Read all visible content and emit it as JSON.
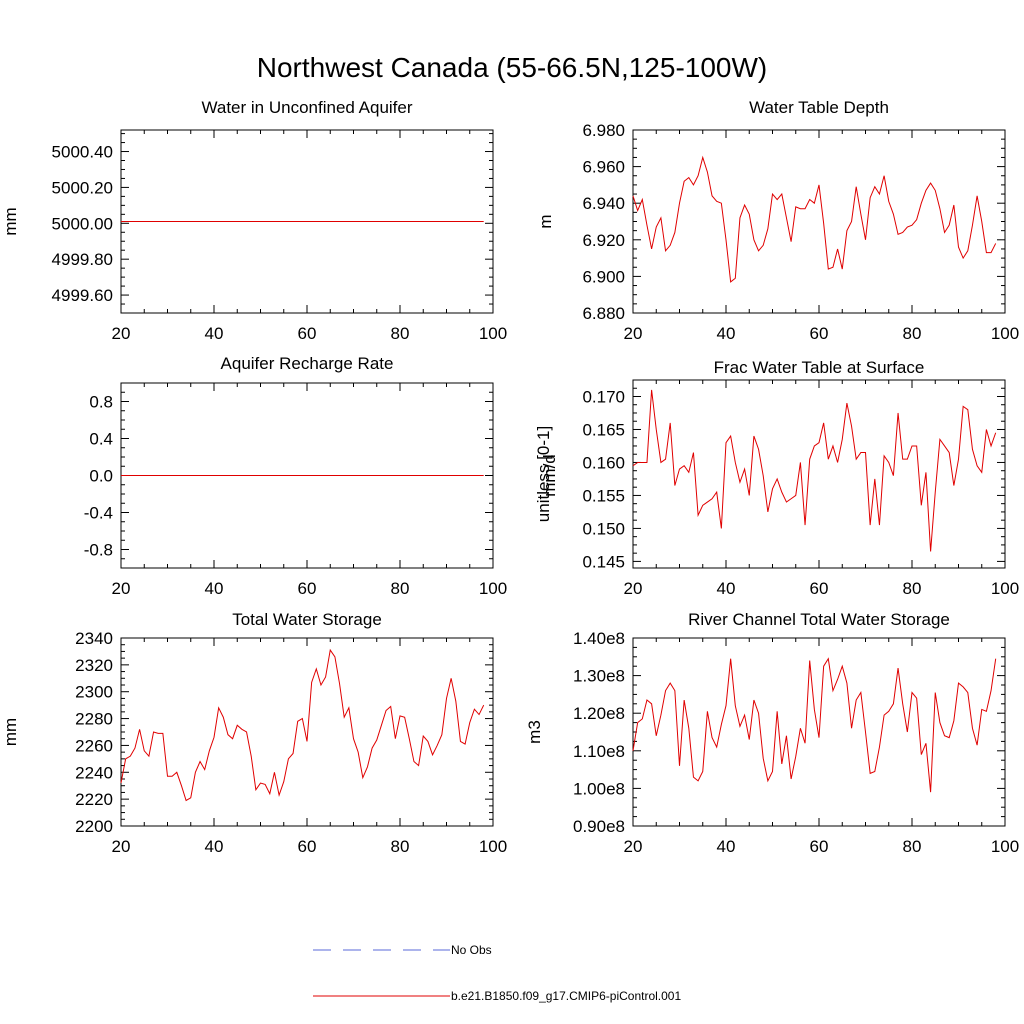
{
  "figure": {
    "title": "Northwest Canada (55-66.5N,125-100W)"
  },
  "legend": {
    "entries": [
      {
        "label": "No Obs",
        "style": "dashed",
        "color": "#5a6ad8"
      },
      {
        "label": "b.e21.B1850.f09_g17.CMIP6-piControl.001",
        "style": "solid",
        "color": "#e00000"
      }
    ]
  },
  "chart_data": [
    {
      "type": "line",
      "title": "Water in Unconfined Aquifer",
      "ylabel": "mm",
      "xlim": [
        20,
        100
      ],
      "ylim": [
        4999.5,
        5000.52
      ],
      "xticks": [
        20,
        40,
        60,
        80,
        100
      ],
      "xtick_labels": [
        "20",
        "40",
        "60",
        "80",
        "100"
      ],
      "yticks": [
        4999.6,
        4999.8,
        5000.0,
        5000.2,
        5000.4
      ],
      "ytick_labels": [
        "4999.60",
        "4999.80",
        "5000.00",
        "5000.20",
        "5000.40"
      ],
      "series": [
        {
          "name": "b.e21.B1850.f09_g17.CMIP6-piControl.001",
          "color": "#e00000",
          "x": [
            20,
            98
          ],
          "y": [
            5000.01,
            5000.01
          ]
        }
      ]
    },
    {
      "type": "line",
      "title": "Water Table Depth",
      "ylabel": "m",
      "xlim": [
        20,
        100
      ],
      "ylim": [
        6.88,
        6.98
      ],
      "xticks": [
        20,
        40,
        60,
        80,
        100
      ],
      "xtick_labels": [
        "20",
        "40",
        "60",
        "80",
        "100"
      ],
      "yticks": [
        6.88,
        6.9,
        6.92,
        6.94,
        6.96,
        6.98
      ],
      "ytick_labels": [
        "6.880",
        "6.900",
        "6.920",
        "6.940",
        "6.960",
        "6.980"
      ],
      "series": [
        {
          "name": "b.e21.B1850.f09_g17.CMIP6-piControl.001",
          "color": "#e00000",
          "x": [
            20,
            21,
            22,
            23,
            24,
            25,
            26,
            27,
            28,
            29,
            30,
            31,
            32,
            33,
            34,
            35,
            36,
            37,
            38,
            39,
            40,
            41,
            42,
            43,
            44,
            45,
            46,
            47,
            48,
            49,
            50,
            51,
            52,
            53,
            54,
            55,
            56,
            57,
            58,
            59,
            60,
            61,
            62,
            63,
            64,
            65,
            66,
            67,
            68,
            69,
            70,
            71,
            72,
            73,
            74,
            75,
            76,
            77,
            78,
            79,
            80,
            81,
            82,
            83,
            84,
            85,
            86,
            87,
            88,
            89,
            90,
            91,
            92,
            93,
            94,
            95,
            96,
            97,
            98
          ],
          "y": [
            6.944,
            6.936,
            6.942,
            6.928,
            6.915,
            6.927,
            6.932,
            6.914,
            6.917,
            6.924,
            6.94,
            6.952,
            6.954,
            6.95,
            6.955,
            6.965,
            6.957,
            6.944,
            6.941,
            6.94,
            6.92,
            6.897,
            6.899,
            6.932,
            6.939,
            6.934,
            6.92,
            6.914,
            6.917,
            6.926,
            6.945,
            6.942,
            6.945,
            6.932,
            6.919,
            6.938,
            6.937,
            6.937,
            6.942,
            6.94,
            6.95,
            6.929,
            6.904,
            6.905,
            6.915,
            6.904,
            6.925,
            6.93,
            6.949,
            6.934,
            6.92,
            6.943,
            6.949,
            6.945,
            6.955,
            6.941,
            6.934,
            6.923,
            6.924,
            6.927,
            6.928,
            6.931,
            6.94,
            6.947,
            6.951,
            6.947,
            6.937,
            6.924,
            6.928,
            6.939,
            6.916,
            6.91,
            6.914,
            6.928,
            6.944,
            6.93,
            6.913,
            6.913,
            6.918
          ]
        }
      ]
    },
    {
      "type": "line",
      "title": "Aquifer Recharge Rate",
      "ylabel": "mm/d",
      "xlim": [
        20,
        100
      ],
      "ylim": [
        -1.0,
        1.0
      ],
      "xticks": [
        20,
        40,
        60,
        80,
        100
      ],
      "xtick_labels": [
        "20",
        "40",
        "60",
        "80",
        "100"
      ],
      "yticks": [
        -0.8,
        -0.4,
        0.0,
        0.4,
        0.8
      ],
      "ytick_labels": [
        "-0.8",
        "-0.4",
        "0.0",
        "0.4",
        "0.8"
      ],
      "series": [
        {
          "name": "b.e21.B1850.f09_g17.CMIP6-piControl.001",
          "color": "#e00000",
          "x": [
            20,
            98
          ],
          "y": [
            0.0,
            0.0
          ]
        }
      ]
    },
    {
      "type": "line",
      "title": "Frac Water Table at Surface",
      "ylabel": "unitless [0-1]",
      "xlim": [
        20,
        100
      ],
      "ylim": [
        0.144,
        0.1725
      ],
      "xticks": [
        20,
        40,
        60,
        80,
        100
      ],
      "xtick_labels": [
        "20",
        "40",
        "60",
        "80",
        "100"
      ],
      "yticks": [
        0.145,
        0.15,
        0.155,
        0.16,
        0.165,
        0.17
      ],
      "ytick_labels": [
        "0.145",
        "0.150",
        "0.155",
        "0.160",
        "0.165",
        "0.170"
      ],
      "series": [
        {
          "name": "b.e21.B1850.f09_g17.CMIP6-piControl.001",
          "color": "#e00000",
          "x": [
            20,
            21,
            22,
            23,
            24,
            25,
            26,
            27,
            28,
            29,
            30,
            31,
            32,
            33,
            34,
            35,
            36,
            37,
            38,
            39,
            40,
            41,
            42,
            43,
            44,
            45,
            46,
            47,
            48,
            49,
            50,
            51,
            52,
            53,
            54,
            55,
            56,
            57,
            58,
            59,
            60,
            61,
            62,
            63,
            64,
            65,
            66,
            67,
            68,
            69,
            70,
            71,
            72,
            73,
            74,
            75,
            76,
            77,
            78,
            79,
            80,
            81,
            82,
            83,
            84,
            85,
            86,
            87,
            88,
            89,
            90,
            91,
            92,
            93,
            94,
            95,
            96,
            97,
            98
          ],
          "y": [
            0.1595,
            0.16,
            0.16,
            0.16,
            0.171,
            0.165,
            0.16,
            0.1605,
            0.166,
            0.1565,
            0.159,
            0.1595,
            0.1585,
            0.1615,
            0.152,
            0.1535,
            0.154,
            0.1545,
            0.1555,
            0.15,
            0.163,
            0.164,
            0.16,
            0.157,
            0.159,
            0.155,
            0.164,
            0.162,
            0.158,
            0.1525,
            0.156,
            0.1575,
            0.1555,
            0.154,
            0.1545,
            0.155,
            0.16,
            0.1505,
            0.1605,
            0.1625,
            0.163,
            0.166,
            0.1605,
            0.1625,
            0.16,
            0.1635,
            0.169,
            0.1655,
            0.1605,
            0.1615,
            0.1615,
            0.1505,
            0.1575,
            0.1505,
            0.161,
            0.16,
            0.158,
            0.1675,
            0.1605,
            0.1605,
            0.1625,
            0.1625,
            0.1535,
            0.1585,
            0.1465,
            0.1555,
            0.1635,
            0.1625,
            0.1615,
            0.1565,
            0.1605,
            0.1685,
            0.168,
            0.162,
            0.1595,
            0.1585,
            0.165,
            0.1625,
            0.1645
          ]
        }
      ]
    },
    {
      "type": "line",
      "title": "Total Water Storage",
      "ylabel": "mm",
      "xlim": [
        20,
        100
      ],
      "ylim": [
        2200,
        2340
      ],
      "xticks": [
        20,
        40,
        60,
        80,
        100
      ],
      "xtick_labels": [
        "20",
        "40",
        "60",
        "80",
        "100"
      ],
      "yticks": [
        2200,
        2220,
        2240,
        2260,
        2280,
        2300,
        2320,
        2340
      ],
      "ytick_labels": [
        "2200",
        "2220",
        "2240",
        "2260",
        "2280",
        "2300",
        "2320",
        "2340"
      ],
      "series": [
        {
          "name": "b.e21.B1850.f09_g17.CMIP6-piControl.001",
          "color": "#e00000",
          "x": [
            20,
            21,
            22,
            23,
            24,
            25,
            26,
            27,
            28,
            29,
            30,
            31,
            32,
            33,
            34,
            35,
            36,
            37,
            38,
            39,
            40,
            41,
            42,
            43,
            44,
            45,
            46,
            47,
            48,
            49,
            50,
            51,
            52,
            53,
            54,
            55,
            56,
            57,
            58,
            59,
            60,
            61,
            62,
            63,
            64,
            65,
            66,
            67,
            68,
            69,
            70,
            71,
            72,
            73,
            74,
            75,
            76,
            77,
            78,
            79,
            80,
            81,
            82,
            83,
            84,
            85,
            86,
            87,
            88,
            89,
            90,
            91,
            92,
            93,
            94,
            95,
            96,
            97,
            98
          ],
          "y": [
            2232,
            2250,
            2252,
            2258,
            2272,
            2256,
            2252,
            2270,
            2269,
            2269,
            2237,
            2237,
            2240,
            2230,
            2219,
            2221,
            2240,
            2248,
            2242,
            2256,
            2266,
            2288,
            2281,
            2268,
            2265,
            2275,
            2272,
            2270,
            2252,
            2227,
            2232,
            2231,
            2224,
            2240,
            2223,
            2233,
            2250,
            2254,
            2278,
            2280,
            2263,
            2307,
            2317,
            2305,
            2311,
            2331,
            2326,
            2306,
            2281,
            2288,
            2265,
            2255,
            2236,
            2244,
            2258,
            2264,
            2275,
            2286,
            2289,
            2265,
            2282,
            2281,
            2265,
            2248,
            2245,
            2267,
            2263,
            2253,
            2260,
            2268,
            2295,
            2310,
            2293,
            2263,
            2261,
            2277,
            2287,
            2283,
            2290
          ]
        }
      ]
    },
    {
      "type": "line",
      "title": "River Channel Total Water Storage",
      "ylabel": "m3",
      "xlim": [
        20,
        100
      ],
      "ylim": [
        90000000.0,
        140000000.0
      ],
      "xticks": [
        20,
        40,
        60,
        80,
        100
      ],
      "xtick_labels": [
        "20",
        "40",
        "60",
        "80",
        "100"
      ],
      "yticks": [
        90000000.0,
        100000000.0,
        110000000.0,
        120000000.0,
        130000000.0,
        140000000.0
      ],
      "ytick_labels": [
        "0.90e8",
        "1.00e8",
        "1.10e8",
        "1.20e8",
        "1.30e8",
        "1.40e8"
      ],
      "series": [
        {
          "name": "b.e21.B1850.f09_g17.CMIP6-piControl.001",
          "color": "#e00000",
          "x": [
            20,
            21,
            22,
            23,
            24,
            25,
            26,
            27,
            28,
            29,
            30,
            31,
            32,
            33,
            34,
            35,
            36,
            37,
            38,
            39,
            40,
            41,
            42,
            43,
            44,
            45,
            46,
            47,
            48,
            49,
            50,
            51,
            52,
            53,
            54,
            55,
            56,
            57,
            58,
            59,
            60,
            61,
            62,
            63,
            64,
            65,
            66,
            67,
            68,
            69,
            70,
            71,
            72,
            73,
            74,
            75,
            76,
            77,
            78,
            79,
            80,
            81,
            82,
            83,
            84,
            85,
            86,
            87,
            88,
            89,
            90,
            91,
            92,
            93,
            94,
            95,
            96,
            97,
            98
          ],
          "y": [
            110000000.0,
            117500000.0,
            118500000.0,
            123500000.0,
            122500000.0,
            114000000.0,
            119500000.0,
            126000000.0,
            128000000.0,
            126000000.0,
            106000000.0,
            123500000.0,
            116000000.0,
            103000000.0,
            102000000.0,
            104500000.0,
            120500000.0,
            113500000.0,
            111000000.0,
            117000000.0,
            122000000.0,
            134500000.0,
            122000000.0,
            116500000.0,
            119500000.0,
            113000000.0,
            123500000.0,
            120000000.0,
            108000000.0,
            102000000.0,
            104500000.0,
            120500000.0,
            106500000.0,
            114000000.0,
            102500000.0,
            108500000.0,
            116000000.0,
            112000000.0,
            134000000.0,
            121000000.0,
            113500000.0,
            132500000.0,
            134500000.0,
            126000000.0,
            129000000.0,
            132500000.0,
            128000000.0,
            116000000.0,
            123500000.0,
            125500000.0,
            115000000.0,
            104000000.0,
            104500000.0,
            111000000.0,
            119500000.0,
            120500000.0,
            122500000.0,
            132000000.0,
            122500000.0,
            115000000.0,
            125500000.0,
            124000000.0,
            109000000.0,
            112000000.0,
            99000000.0,
            125500000.0,
            117500000.0,
            114000000.0,
            113500000.0,
            118000000.0,
            128000000.0,
            127000000.0,
            125500000.0,
            116000000.0,
            111500000.0,
            121000000.0,
            120500000.0,
            126000000.0,
            134500000.0
          ]
        }
      ]
    }
  ]
}
